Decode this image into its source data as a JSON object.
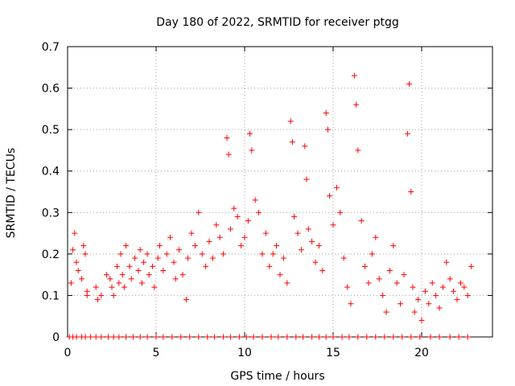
{
  "chart_data": {
    "type": "scatter",
    "title": "Day 180 of 2022, SRMTID for receiver ptgg",
    "xlabel": "GPS time / hours",
    "ylabel": "SRMTID / TECUs",
    "xlim": [
      0,
      24
    ],
    "ylim": [
      0,
      0.7
    ],
    "xticks": [
      0,
      5,
      10,
      15,
      20
    ],
    "yticks": [
      0,
      0.1,
      0.2,
      0.3,
      0.4,
      0.5,
      0.6,
      0.7
    ],
    "grid": true,
    "marker": "+",
    "color": "#ff0000",
    "series": [
      {
        "name": "SRMTID",
        "points": [
          [
            0.2,
            0.13
          ],
          [
            0.3,
            0.21
          ],
          [
            0.4,
            0.25
          ],
          [
            0.5,
            0.18
          ],
          [
            0.6,
            0.16
          ],
          [
            0.8,
            0.14
          ],
          [
            0.9,
            0.22
          ],
          [
            1.0,
            0.2
          ],
          [
            1.1,
            0.11
          ],
          [
            1.1,
            0.1
          ],
          [
            1.6,
            0.12
          ],
          [
            1.7,
            0.09
          ],
          [
            1.9,
            0.1
          ],
          [
            2.2,
            0.15
          ],
          [
            2.4,
            0.14
          ],
          [
            2.5,
            0.12
          ],
          [
            2.6,
            0.1
          ],
          [
            2.8,
            0.17
          ],
          [
            2.9,
            0.13
          ],
          [
            3.0,
            0.2
          ],
          [
            3.1,
            0.15
          ],
          [
            3.2,
            0.12
          ],
          [
            3.3,
            0.22
          ],
          [
            3.5,
            0.17
          ],
          [
            3.6,
            0.14
          ],
          [
            3.8,
            0.19
          ],
          [
            4.0,
            0.16
          ],
          [
            4.1,
            0.21
          ],
          [
            4.2,
            0.13
          ],
          [
            4.3,
            0.18
          ],
          [
            4.5,
            0.2
          ],
          [
            4.6,
            0.15
          ],
          [
            4.8,
            0.17
          ],
          [
            4.9,
            0.12
          ],
          [
            5.1,
            0.19
          ],
          [
            5.2,
            0.22
          ],
          [
            5.4,
            0.16
          ],
          [
            5.6,
            0.2
          ],
          [
            5.8,
            0.24
          ],
          [
            6.0,
            0.18
          ],
          [
            6.1,
            0.14
          ],
          [
            6.3,
            0.21
          ],
          [
            6.5,
            0.15
          ],
          [
            6.7,
            0.09
          ],
          [
            6.8,
            0.19
          ],
          [
            7.0,
            0.25
          ],
          [
            7.2,
            0.22
          ],
          [
            7.4,
            0.3
          ],
          [
            7.6,
            0.2
          ],
          [
            7.8,
            0.17
          ],
          [
            8.0,
            0.23
          ],
          [
            8.2,
            0.19
          ],
          [
            8.4,
            0.27
          ],
          [
            8.6,
            0.24
          ],
          [
            8.8,
            0.2
          ],
          [
            9.0,
            0.48
          ],
          [
            9.1,
            0.44
          ],
          [
            9.2,
            0.26
          ],
          [
            9.4,
            0.31
          ],
          [
            9.6,
            0.29
          ],
          [
            9.8,
            0.22
          ],
          [
            10.0,
            0.24
          ],
          [
            10.2,
            0.28
          ],
          [
            10.3,
            0.49
          ],
          [
            10.4,
            0.45
          ],
          [
            10.6,
            0.33
          ],
          [
            10.8,
            0.3
          ],
          [
            11.0,
            0.2
          ],
          [
            11.2,
            0.25
          ],
          [
            11.4,
            0.17
          ],
          [
            11.6,
            0.2
          ],
          [
            11.8,
            0.22
          ],
          [
            12.0,
            0.15
          ],
          [
            12.2,
            0.19
          ],
          [
            12.4,
            0.13
          ],
          [
            12.6,
            0.52
          ],
          [
            12.7,
            0.47
          ],
          [
            12.8,
            0.29
          ],
          [
            13.0,
            0.25
          ],
          [
            13.2,
            0.21
          ],
          [
            13.4,
            0.46
          ],
          [
            13.5,
            0.38
          ],
          [
            13.6,
            0.26
          ],
          [
            13.8,
            0.23
          ],
          [
            14.0,
            0.18
          ],
          [
            14.2,
            0.22
          ],
          [
            14.4,
            0.16
          ],
          [
            14.6,
            0.54
          ],
          [
            14.7,
            0.5
          ],
          [
            14.8,
            0.34
          ],
          [
            15.0,
            0.27
          ],
          [
            15.2,
            0.36
          ],
          [
            15.4,
            0.3
          ],
          [
            15.6,
            0.19
          ],
          [
            15.8,
            0.12
          ],
          [
            16.0,
            0.08
          ],
          [
            16.2,
            0.63
          ],
          [
            16.3,
            0.56
          ],
          [
            16.4,
            0.45
          ],
          [
            16.6,
            0.28
          ],
          [
            16.8,
            0.17
          ],
          [
            17.0,
            0.13
          ],
          [
            17.2,
            0.2
          ],
          [
            17.4,
            0.24
          ],
          [
            17.6,
            0.14
          ],
          [
            17.8,
            0.1
          ],
          [
            18.0,
            0.06
          ],
          [
            18.2,
            0.16
          ],
          [
            18.4,
            0.22
          ],
          [
            18.6,
            0.13
          ],
          [
            18.8,
            0.08
          ],
          [
            19.0,
            0.15
          ],
          [
            19.2,
            0.49
          ],
          [
            19.3,
            0.61
          ],
          [
            19.4,
            0.35
          ],
          [
            19.5,
            0.12
          ],
          [
            19.6,
            0.06
          ],
          [
            19.8,
            0.09
          ],
          [
            20.0,
            0.04
          ],
          [
            20.2,
            0.11
          ],
          [
            20.4,
            0.08
          ],
          [
            20.6,
            0.13
          ],
          [
            20.8,
            0.1
          ],
          [
            21.0,
            0.07
          ],
          [
            21.2,
            0.12
          ],
          [
            21.4,
            0.18
          ],
          [
            21.6,
            0.14
          ],
          [
            21.8,
            0.11
          ],
          [
            22.0,
            0.09
          ],
          [
            22.2,
            0.13
          ],
          [
            22.4,
            0.12
          ],
          [
            22.6,
            0.1
          ],
          [
            22.8,
            0.17
          ]
        ]
      },
      {
        "name": "zero-line markers",
        "points": [
          [
            0.1,
            0
          ],
          [
            0.3,
            0
          ],
          [
            0.5,
            0
          ],
          [
            0.8,
            0
          ],
          [
            1.0,
            0
          ],
          [
            1.3,
            0
          ],
          [
            1.6,
            0
          ],
          [
            1.9,
            0
          ],
          [
            2.3,
            0
          ],
          [
            2.6,
            0
          ],
          [
            2.9,
            0
          ],
          [
            3.3,
            0
          ],
          [
            3.7,
            0
          ],
          [
            4.1,
            0
          ],
          [
            4.5,
            0
          ],
          [
            5.0,
            0
          ],
          [
            5.4,
            0
          ],
          [
            5.9,
            0
          ],
          [
            6.4,
            0
          ],
          [
            6.9,
            0
          ],
          [
            7.4,
            0
          ],
          [
            7.9,
            0
          ],
          [
            8.3,
            0
          ],
          [
            8.8,
            0
          ],
          [
            9.2,
            0
          ],
          [
            9.7,
            0
          ],
          [
            10.1,
            0
          ],
          [
            10.5,
            0
          ],
          [
            11.0,
            0
          ],
          [
            11.5,
            0
          ],
          [
            11.9,
            0
          ],
          [
            12.4,
            0
          ],
          [
            12.9,
            0
          ],
          [
            13.3,
            0
          ],
          [
            13.8,
            0
          ],
          [
            14.2,
            0
          ],
          [
            14.6,
            0
          ],
          [
            15.0,
            0
          ],
          [
            15.5,
            0
          ],
          [
            15.9,
            0
          ],
          [
            16.4,
            0
          ],
          [
            16.9,
            0
          ],
          [
            17.4,
            0
          ],
          [
            17.9,
            0
          ],
          [
            18.4,
            0
          ],
          [
            18.9,
            0
          ],
          [
            19.4,
            0
          ],
          [
            19.9,
            0
          ],
          [
            20.5,
            0
          ],
          [
            21.0,
            0
          ],
          [
            21.6,
            0
          ],
          [
            22.1,
            0
          ],
          [
            22.6,
            0
          ]
        ]
      }
    ]
  }
}
